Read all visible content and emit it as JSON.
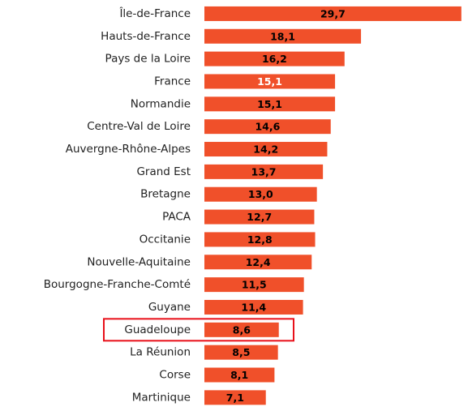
{
  "chart_data": {
    "type": "barh",
    "categories": [
      "Île-de-France",
      "Hauts-de-France",
      "Pays de la Loire",
      "France",
      "Normandie",
      "Centre-Val de Loire",
      "Auvergne-Rhône-Alpes",
      "Grand Est",
      "Bretagne",
      "PACA",
      "Occitanie",
      "Nouvelle-Aquitaine",
      "Bourgogne-Franche-Comté",
      "Guyane",
      "Guadeloupe",
      "La Réunion",
      "Corse",
      "Martinique"
    ],
    "values": [
      29.7,
      18.1,
      16.2,
      15.1,
      15.1,
      14.6,
      14.2,
      13.7,
      13.0,
      12.7,
      12.8,
      12.4,
      11.5,
      11.4,
      8.6,
      8.5,
      8.1,
      7.1
    ],
    "value_labels": [
      "29,7",
      "18,1",
      "16,2",
      "15,1",
      "15,1",
      "14,6",
      "14,2",
      "13,7",
      "13,0",
      "12,7",
      "12,8",
      "12,4",
      "11,5",
      "11,4",
      "8,6",
      "8,5",
      "8,1",
      "7,1"
    ],
    "value_label_colors": [
      "#000000",
      "#000000",
      "#000000",
      "#ffffff",
      "#000000",
      "#000000",
      "#000000",
      "#000000",
      "#000000",
      "#000000",
      "#000000",
      "#000000",
      "#000000",
      "#000000",
      "#000000",
      "#000000",
      "#000000",
      "#000000"
    ],
    "color": "#f0502a",
    "highlight": "Guadeloupe",
    "highlight_color": "#e8101a",
    "xlim": [
      0,
      30
    ]
  }
}
